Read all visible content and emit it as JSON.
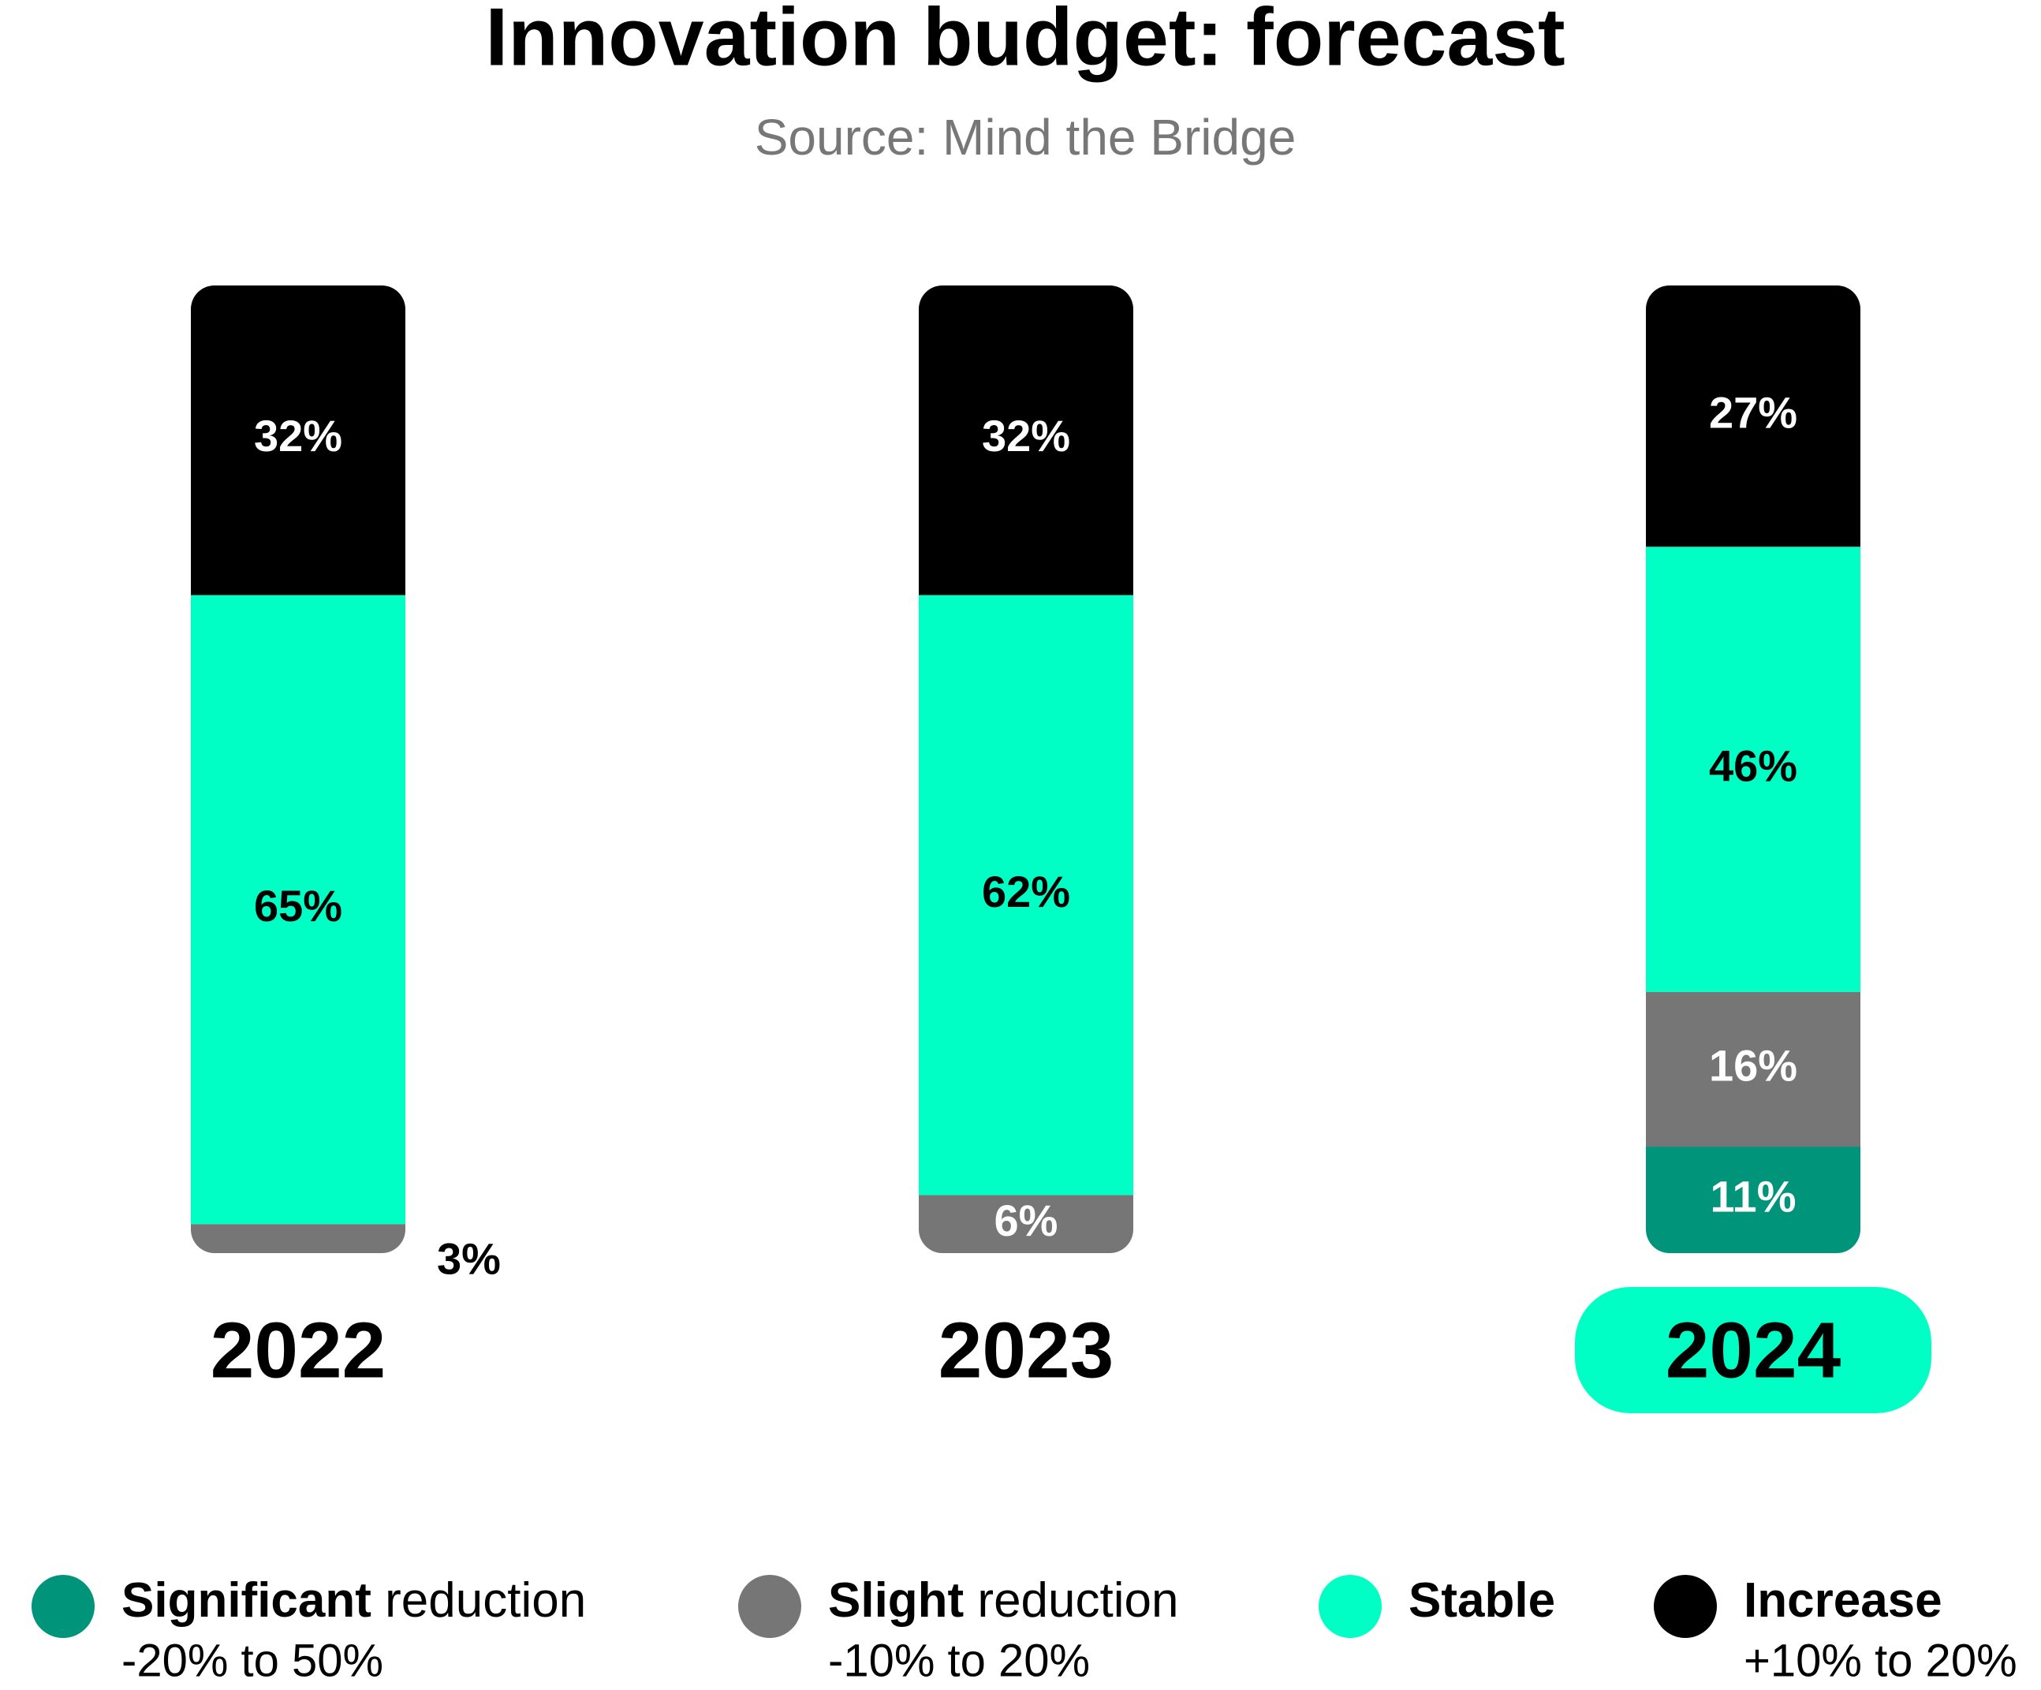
{
  "chart_data": {
    "type": "stacked_bar",
    "title": "Innovation budget: forecast",
    "subtitle": "Source: Mind the Bridge",
    "categories": [
      "2022",
      "2023",
      "2024"
    ],
    "highlight_index": 2,
    "ylim": [
      0,
      100
    ],
    "series": [
      {
        "name": "Significant",
        "name_rest": " reduction",
        "range": "-20% to 50%",
        "color": "#00957a",
        "label_color": "#ffffff",
        "values": [
          null,
          null,
          11
        ],
        "value_labels": [
          null,
          null,
          "11%"
        ]
      },
      {
        "name": "Slight",
        "name_rest": " reduction",
        "range": "-10% to 20%",
        "color": "#767676",
        "label_color": "#ffffff",
        "values": [
          3,
          6,
          16
        ],
        "value_labels": [
          "3%",
          "6%",
          "16%"
        ]
      },
      {
        "name": "Stable",
        "color": "#00ffc4",
        "label_color": "#000000",
        "values": [
          65,
          62,
          46
        ],
        "value_labels": [
          "65%",
          "62%",
          "46%"
        ]
      },
      {
        "name": "Increase",
        "range": "+10% to 20%",
        "color": "#000000",
        "label_color": "#ffffff",
        "values": [
          32,
          32,
          27
        ],
        "value_labels": [
          "32%",
          "32%",
          "27%"
        ]
      }
    ]
  }
}
